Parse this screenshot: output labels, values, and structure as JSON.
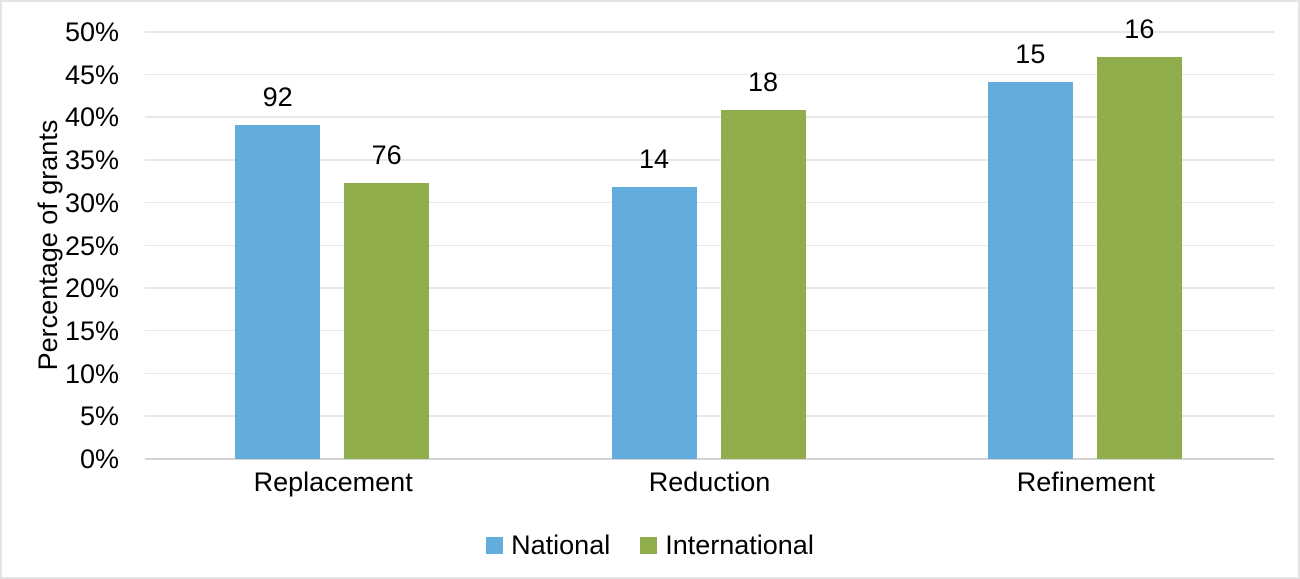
{
  "chart_data": {
    "type": "bar",
    "title": "",
    "xlabel": "",
    "ylabel": "Percentage of grants",
    "categories": [
      "Replacement",
      "Reduction",
      "Refinement"
    ],
    "series": [
      {
        "name": "National",
        "color": "#62ADDB",
        "values": [
          39.1,
          31.8,
          44.1
        ],
        "data_labels": [
          "92",
          "14",
          "15"
        ]
      },
      {
        "name": "International",
        "color": "#8FAD4B",
        "values": [
          32.3,
          40.9,
          47.1
        ],
        "data_labels": [
          "76",
          "18",
          "16"
        ]
      }
    ],
    "y_axis": {
      "min": 0,
      "max": 50,
      "step": 5,
      "unit": "%",
      "tick_labels": [
        "0%",
        "5%",
        "10%",
        "15%",
        "20%",
        "25%",
        "30%",
        "35%",
        "40%",
        "45%",
        "50%"
      ]
    },
    "grid": "horizontal",
    "legend_position": "bottom",
    "colors": {
      "gridline": "#E7E7E7",
      "baseline": "#D4D4D4",
      "text": "#000000",
      "background": "#FFFFFF",
      "border": "#E4E4E4"
    }
  }
}
